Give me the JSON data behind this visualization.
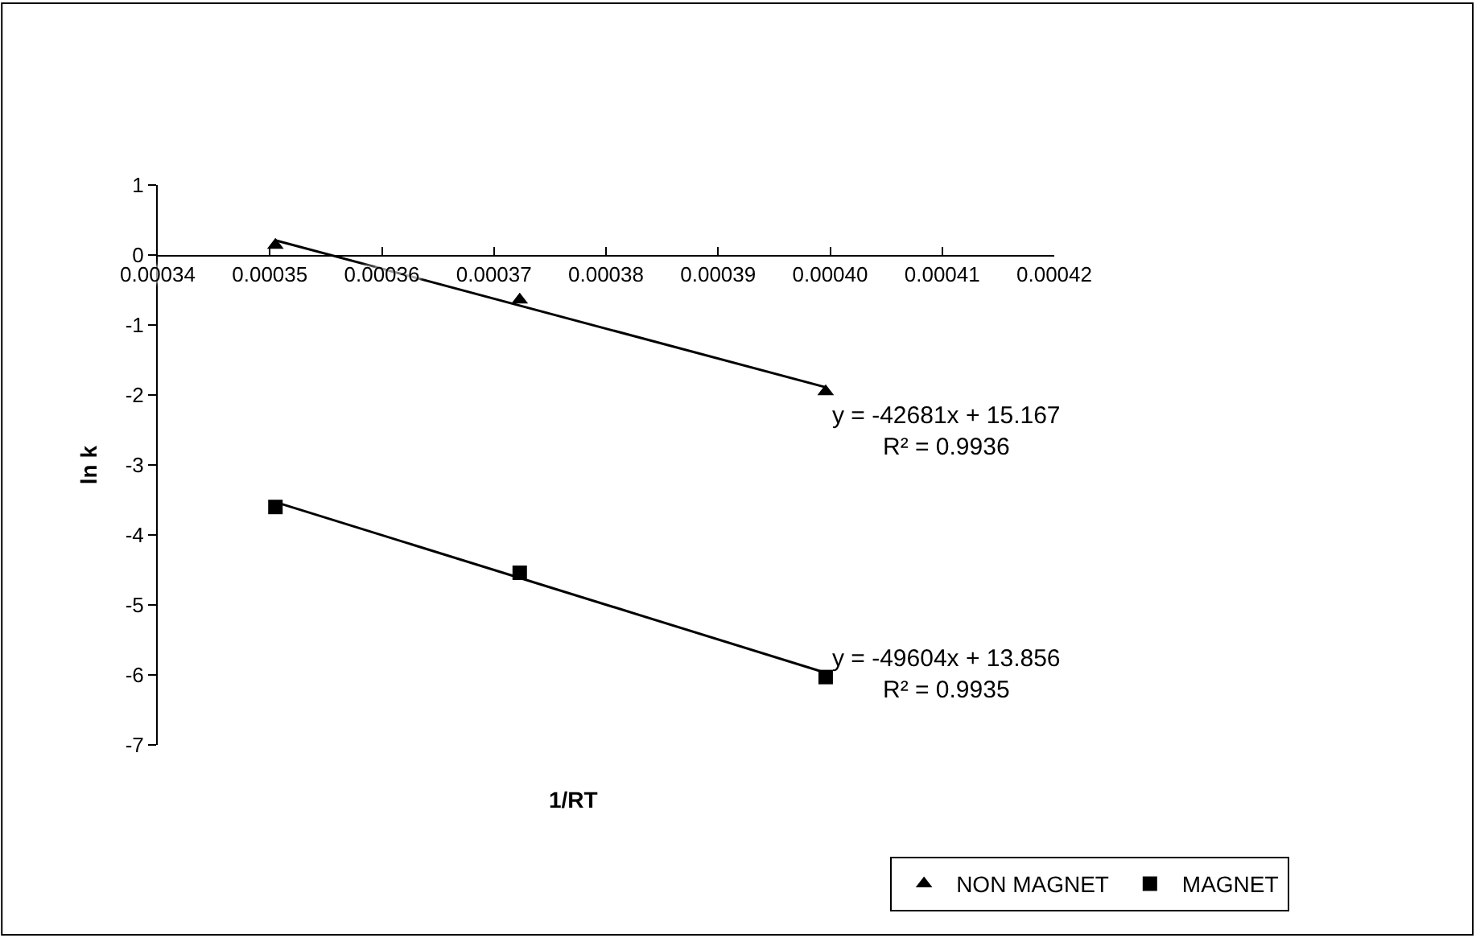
{
  "chart_data": {
    "type": "scatter",
    "xlabel": "1/RT",
    "ylabel": "ln k",
    "xlim": [
      0.00034,
      0.00042
    ],
    "xticks": [
      0.00034,
      0.00035,
      0.00036,
      0.00037,
      0.00038,
      0.00039,
      {
        "value": 0.0004,
        "label": "0.00040"
      },
      0.00041,
      0.00042
    ],
    "ylim": [
      -7,
      1
    ],
    "yticks": [
      -7,
      -6,
      -5,
      -4,
      -3,
      -2,
      -1,
      0,
      1
    ],
    "legend": "bottom right",
    "series": [
      {
        "name": "NON MAGNET",
        "color": "#000000",
        "marker": "triangle",
        "x": [
          0.0003505,
          0.0003723,
          0.0003996
        ],
        "values": [
          0.14,
          -0.64,
          -1.95
        ]
      },
      {
        "name": "MAGNET",
        "color": "#000000",
        "marker": "square",
        "x": [
          0.0003505,
          0.0003723,
          0.0003996
        ],
        "values": [
          -3.6,
          -4.54,
          -6.03
        ]
      },
      {
        "type": "line",
        "color": "#000000",
        "marker": "none",
        "x": [
          0.0003505,
          0.0003996
        ],
        "values": [
          0.21,
          -1.89
        ]
      },
      {
        "type": "line",
        "color": "#000000",
        "marker": "none",
        "x": [
          0.0003505,
          0.0003996
        ],
        "values": [
          -3.53,
          -5.97
        ]
      }
    ],
    "annotations": [
      "y = -42681x + 15.167\nR² = 0.9936",
      "y = -49604x + 13.856\nR² = 0.9935"
    ]
  }
}
